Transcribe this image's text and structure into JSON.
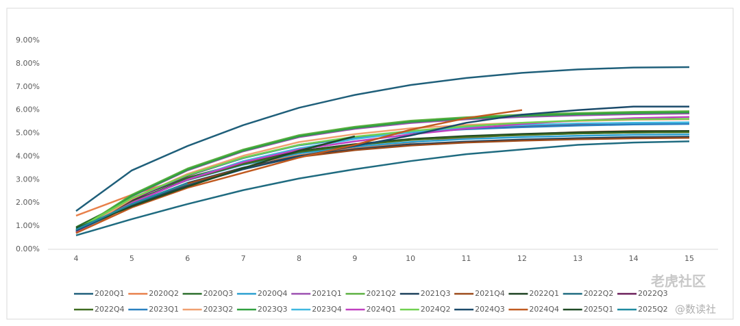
{
  "chart_data": {
    "type": "line",
    "x": [
      4,
      5,
      6,
      7,
      8,
      9,
      10,
      11,
      12,
      13,
      14,
      15
    ],
    "xlim": [
      4,
      15
    ],
    "xticks": [
      4,
      5,
      6,
      7,
      8,
      9,
      10,
      11,
      12,
      13,
      14,
      15
    ],
    "ylim": [
      0,
      9
    ],
    "yticks": [
      {
        "value": 0,
        "label": "0.00%"
      },
      {
        "value": 1,
        "label": "1.00%"
      },
      {
        "value": 2,
        "label": "2.00%"
      },
      {
        "value": 3,
        "label": "3.00%"
      },
      {
        "value": 4,
        "label": "4.00%"
      },
      {
        "value": 5,
        "label": "5.00%"
      },
      {
        "value": 6,
        "label": "6.00%"
      },
      {
        "value": 7,
        "label": "7.00%"
      },
      {
        "value": 8,
        "label": "8.00%"
      },
      {
        "value": 9,
        "label": "9.00%"
      }
    ],
    "grid": false,
    "legend": "bottom",
    "watermark": [
      "老虎社区",
      "@数读社"
    ],
    "series": [
      {
        "name": "2020Q1",
        "color": "#1f5f7a",
        "values": [
          1.65,
          3.4,
          4.45,
          5.35,
          6.1,
          6.65,
          7.08,
          7.38,
          7.6,
          7.75,
          7.83,
          7.85
        ]
      },
      {
        "name": "2020Q2",
        "color": "#e8804a",
        "values": [
          1.45,
          2.35,
          3.1,
          3.65,
          4.05,
          4.35,
          4.6,
          4.8,
          4.95,
          5.05,
          5.1,
          5.1
        ]
      },
      {
        "name": "2020Q3",
        "color": "#2a6e2a",
        "values": [
          0.95,
          2.18,
          3.08,
          3.74,
          4.23,
          4.52,
          4.72,
          4.85,
          4.93,
          4.99,
          5.03,
          5.05
        ]
      },
      {
        "name": "2020Q4",
        "color": "#2a9fd0",
        "values": [
          0.85,
          2.08,
          2.98,
          3.64,
          4.13,
          4.42,
          4.62,
          4.75,
          4.83,
          4.89,
          4.93,
          4.95
        ]
      },
      {
        "name": "2021Q1",
        "color": "#9b4fb0",
        "values": [
          0.75,
          2.28,
          3.4,
          4.22,
          4.83,
          5.19,
          5.44,
          5.6,
          5.7,
          5.77,
          5.82,
          5.85
        ]
      },
      {
        "name": "2021Q2",
        "color": "#5cb040",
        "values": [
          0.8,
          2.35,
          3.48,
          4.3,
          4.92,
          5.28,
          5.54,
          5.69,
          5.8,
          5.87,
          5.92,
          5.95
        ]
      },
      {
        "name": "2021Q3",
        "color": "#1a3f5a",
        "values": [
          0.7,
          1.95,
          2.86,
          3.52,
          4.02,
          4.31,
          4.52,
          4.64,
          4.73,
          4.79,
          4.83,
          4.85
        ]
      },
      {
        "name": "2021Q4",
        "color": "#9c4a1a",
        "values": [
          0.7,
          1.93,
          2.83,
          3.49,
          3.98,
          4.27,
          4.47,
          4.6,
          4.68,
          4.74,
          4.78,
          4.8
        ]
      },
      {
        "name": "2022Q1",
        "color": "#1a4020",
        "values": [
          0.75,
          2.06,
          3.01,
          3.71,
          4.23,
          4.53,
          4.75,
          4.88,
          4.97,
          5.04,
          5.08,
          5.1
        ]
      },
      {
        "name": "2022Q2",
        "color": "#1f6b80",
        "values": [
          0.6,
          1.3,
          1.95,
          2.55,
          3.05,
          3.45,
          3.8,
          4.1,
          4.3,
          4.5,
          4.6,
          4.65
        ]
      },
      {
        "name": "2022Q3",
        "color": "#6b1f5a",
        "values": [
          0.7,
          2.13,
          3.17,
          3.93,
          4.5,
          4.83,
          5.07,
          5.21,
          5.31,
          5.38,
          5.43,
          5.45
        ]
      },
      {
        "name": "2022Q4",
        "color": "#3f6b20",
        "values": [
          0.75,
          2.04,
          2.99,
          3.67,
          4.19,
          4.49,
          4.71,
          4.84,
          4.92,
          4.99,
          5.03,
          5.05
        ]
      },
      {
        "name": "2023Q1",
        "color": "#2a80c0",
        "values": [
          0.8,
          2.18,
          3.19,
          3.93,
          4.48,
          4.8,
          5.03,
          5.17,
          5.26,
          5.33,
          5.38,
          5.4
        ]
      },
      {
        "name": "2023Q2",
        "color": "#f0a070",
        "values": [
          0.7,
          2.17,
          3.25,
          4.03,
          4.62,
          4.96,
          5.21,
          5.36,
          5.45,
          5.53,
          5.58,
          5.6
        ]
      },
      {
        "name": "2023Q3",
        "color": "#30a040",
        "values": [
          0.75,
          2.3,
          3.43,
          4.25,
          4.87,
          5.23,
          5.49,
          5.64,
          5.75,
          5.82,
          5.87,
          5.9
        ]
      },
      {
        "name": "2023Q4",
        "color": "#40b8e0",
        "values": [
          0.7,
          2.0,
          3.0,
          3.8,
          4.35,
          4.75,
          5.05,
          5.25,
          5.35,
          5.42,
          5.45,
          5.47
        ]
      },
      {
        "name": "2024Q1",
        "color": "#c040c0",
        "values": [
          0.75,
          2.0,
          3.0,
          3.75,
          4.3,
          4.65,
          4.95,
          5.2,
          5.4,
          5.55,
          5.65,
          5.7
        ]
      },
      {
        "name": "2024Q2",
        "color": "#70d050",
        "values": [
          0.85,
          2.2,
          3.2,
          3.95,
          4.5,
          4.85,
          5.1,
          5.3,
          5.45,
          5.55,
          5.6,
          5.62
        ]
      },
      {
        "name": "2024Q3",
        "color": "#1a4a6a",
        "values": [
          0.8,
          1.9,
          2.75,
          3.45,
          4.0,
          4.45,
          4.9,
          5.45,
          5.8,
          6.0,
          6.15,
          6.15
        ]
      },
      {
        "name": "2024Q4",
        "color": "#c05a20",
        "values": [
          0.7,
          1.8,
          2.65,
          3.3,
          3.95,
          4.5,
          5.15,
          5.65,
          6.0,
          null,
          null,
          null
        ]
      },
      {
        "name": "2025Q1",
        "color": "#1f4a25",
        "values": [
          0.9,
          1.85,
          2.7,
          3.5,
          4.25,
          4.87,
          null,
          null,
          null,
          null,
          null,
          null
        ]
      },
      {
        "name": "2025Q2",
        "color": "#1f8aa0",
        "values": [
          0.85,
          1.95,
          2.85,
          null,
          null,
          null,
          null,
          null,
          null,
          null,
          null,
          null
        ]
      }
    ]
  }
}
